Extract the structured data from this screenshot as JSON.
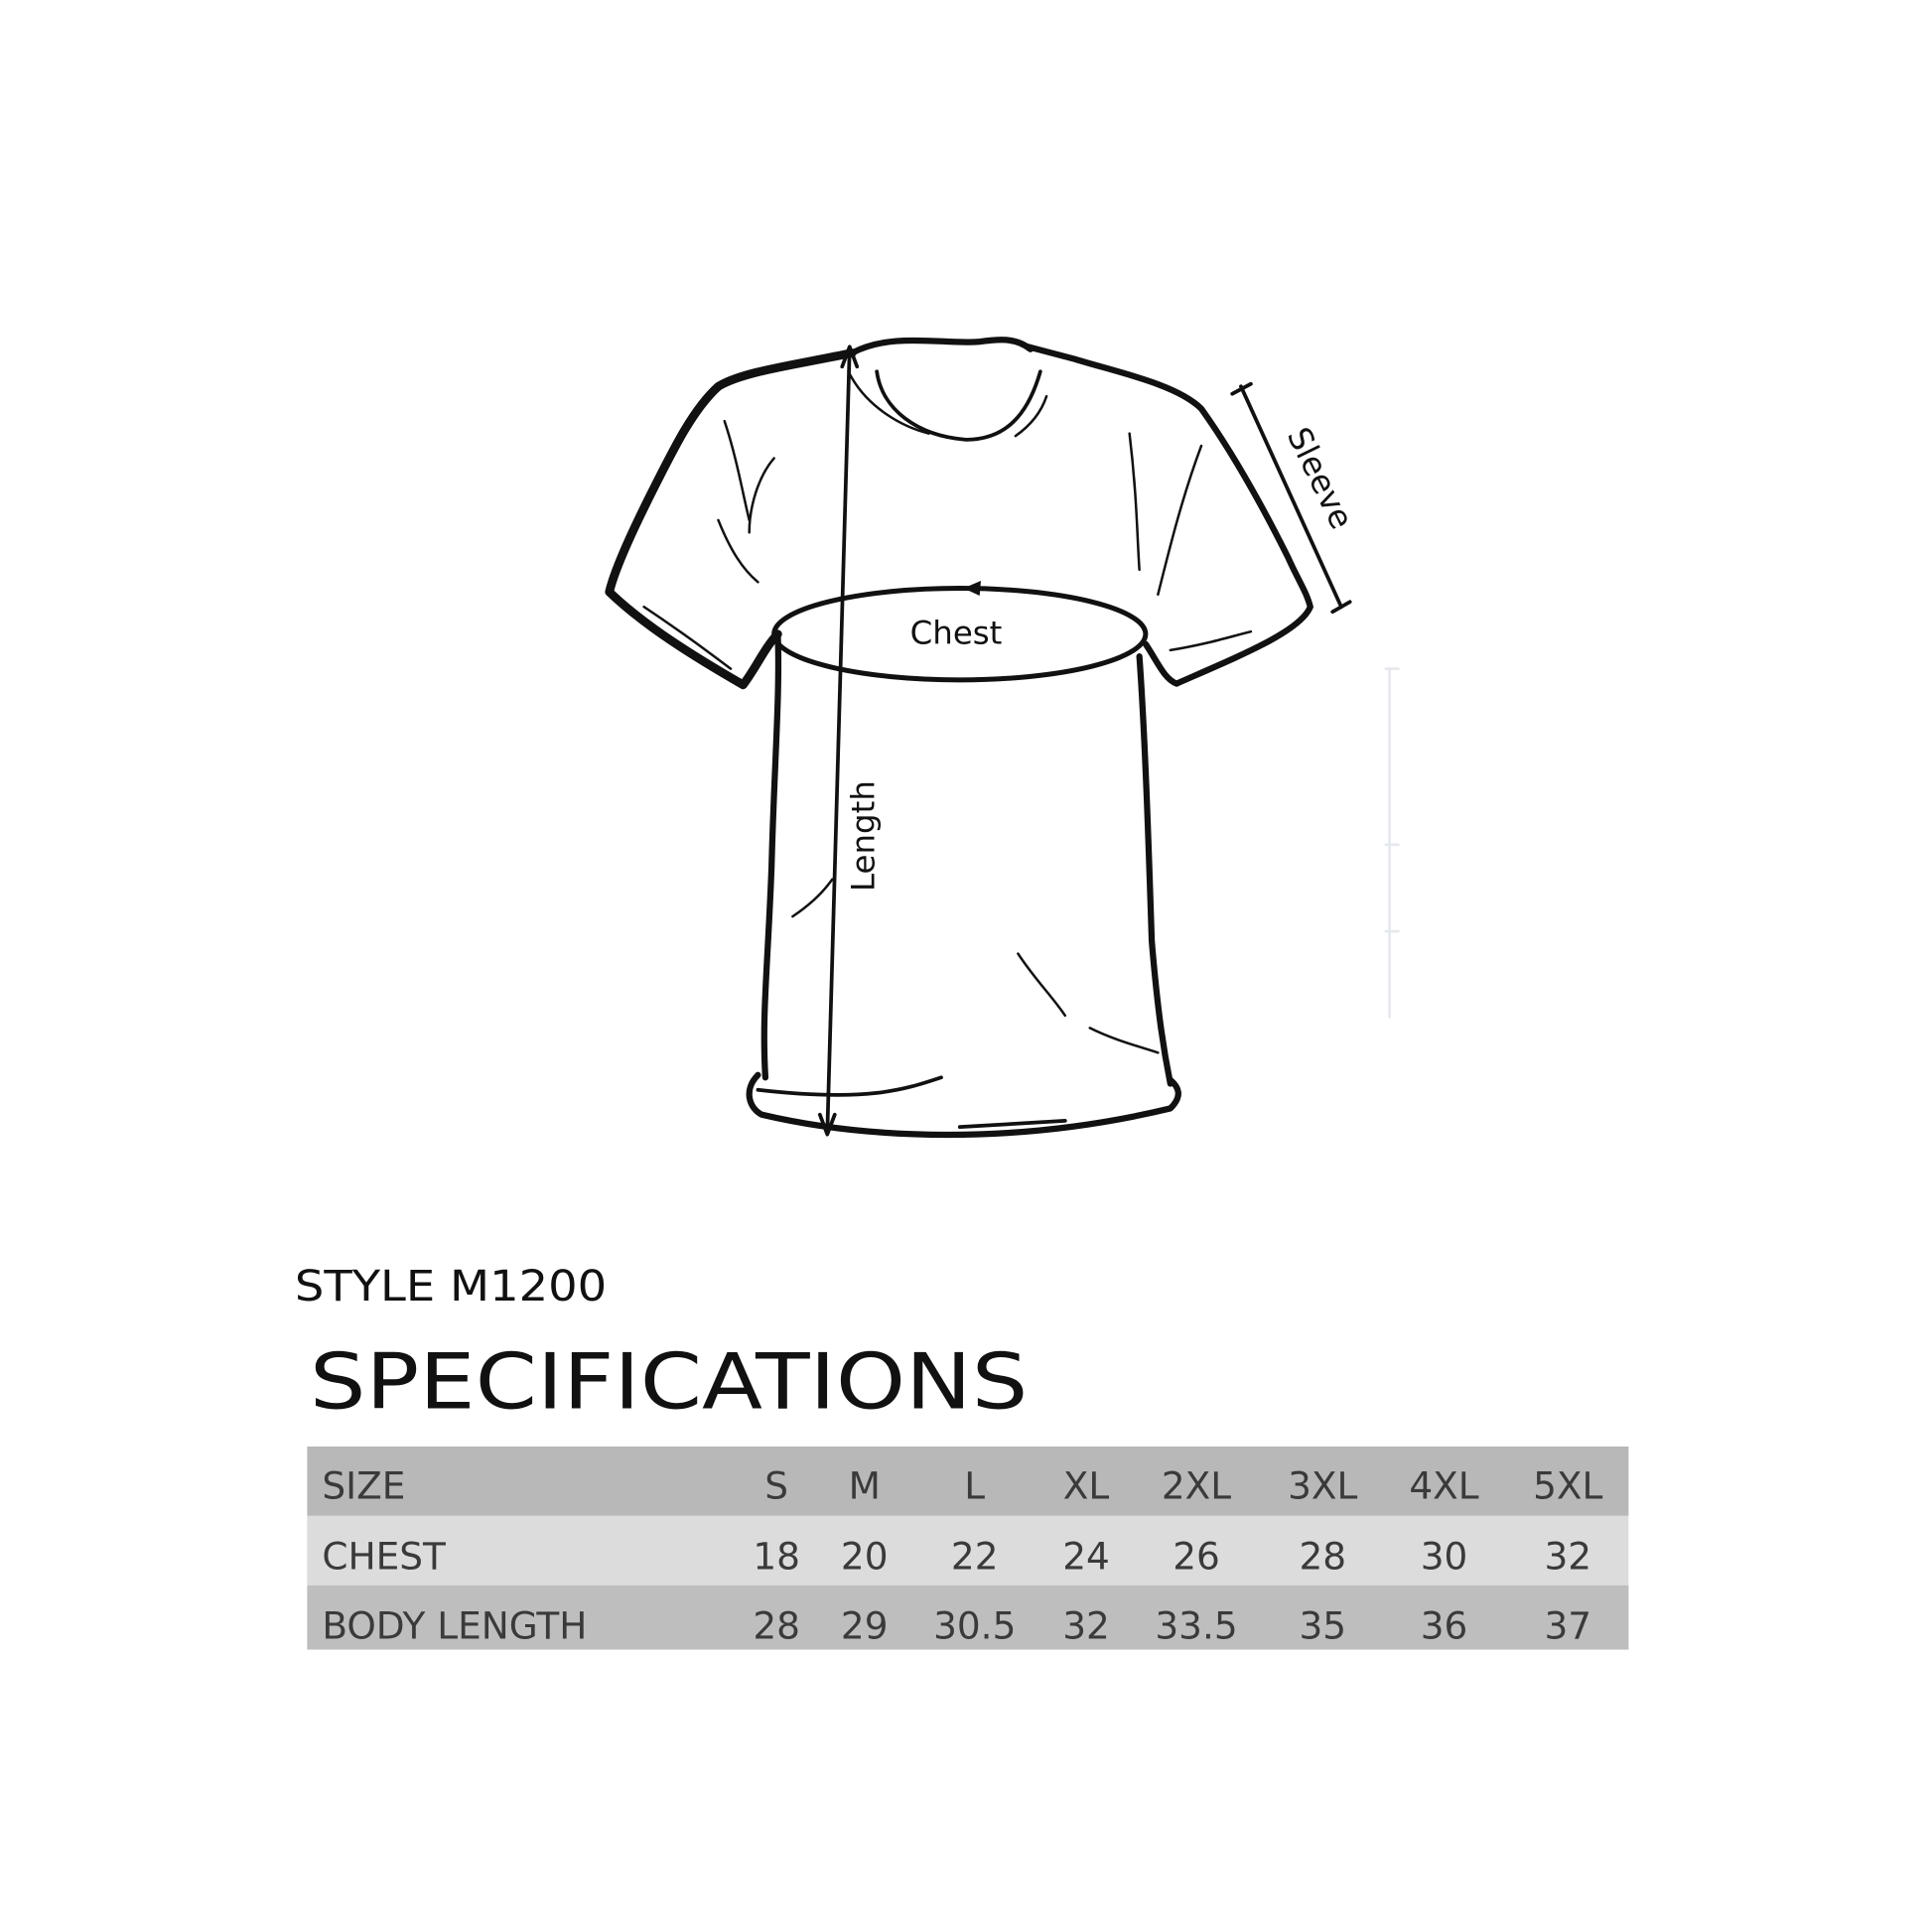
{
  "diagram": {
    "chest_label": "Chest",
    "length_label": "Length",
    "sleeve_label": "Sleeve"
  },
  "style_label": "STYLE M1200",
  "title": "SPECIFICATIONS",
  "table": {
    "header": {
      "label": "SIZE",
      "values": [
        "S",
        "M",
        "L",
        "XL",
        "2XL",
        "3XL",
        "4XL",
        "5XL"
      ]
    },
    "rows": [
      {
        "label": "CHEST",
        "values": [
          "18",
          "20",
          "22",
          "24",
          "26",
          "28",
          "30",
          "32"
        ]
      },
      {
        "label": "BODY LENGTH",
        "values": [
          "28",
          "29",
          "30.5",
          "32",
          "33.5",
          "35",
          "36",
          "37"
        ]
      }
    ]
  },
  "colors": {
    "header_row": "#b8b8b8",
    "chest_row": "#dcdcdc",
    "length_row": "#bebebe"
  }
}
